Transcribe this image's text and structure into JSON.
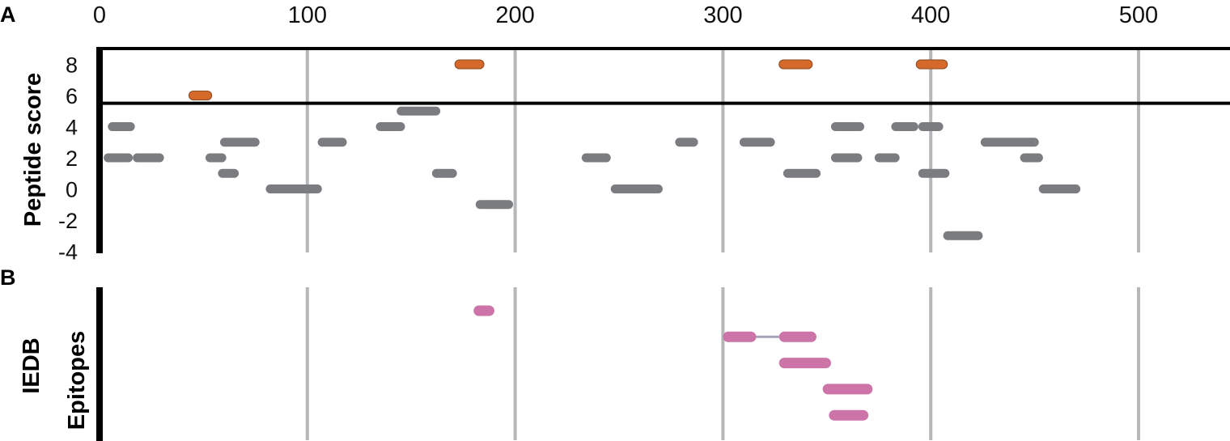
{
  "chart_data": [
    {
      "panel_label": "A",
      "type": "range-bar",
      "ylabel": "Peptide score",
      "xlim": [
        0,
        550
      ],
      "ylim": [
        -4,
        9
      ],
      "x_ticks": [
        "0",
        "100",
        "200",
        "300",
        "400",
        "500"
      ],
      "y_ticks": [
        "8",
        "6",
        "4",
        "2",
        "0",
        "-2",
        "-4"
      ],
      "threshold": 5.5,
      "colors": {
        "high": "#d4692a",
        "normal": "#7a7c80",
        "grid": "#b5b7b8"
      },
      "segments": [
        {
          "start": 43,
          "end": 54,
          "score": 6,
          "group": "high"
        },
        {
          "start": 171,
          "end": 185,
          "score": 8,
          "group": "high"
        },
        {
          "start": 327,
          "end": 343,
          "score": 8,
          "group": "high"
        },
        {
          "start": 393,
          "end": 408,
          "score": 8,
          "group": "high"
        },
        {
          "start": 4,
          "end": 17,
          "score": 4,
          "group": "normal"
        },
        {
          "start": 2,
          "end": 16,
          "score": 2,
          "group": "normal"
        },
        {
          "start": 16,
          "end": 31,
          "score": 2,
          "group": "normal"
        },
        {
          "start": 51,
          "end": 61,
          "score": 2,
          "group": "normal"
        },
        {
          "start": 57,
          "end": 67,
          "score": 1,
          "group": "normal"
        },
        {
          "start": 58,
          "end": 77,
          "score": 3,
          "group": "normal"
        },
        {
          "start": 80,
          "end": 107,
          "score": 0,
          "group": "normal"
        },
        {
          "start": 105,
          "end": 119,
          "score": 3,
          "group": "normal"
        },
        {
          "start": 133,
          "end": 147,
          "score": 4,
          "group": "normal"
        },
        {
          "start": 143,
          "end": 164,
          "score": 5,
          "group": "normal"
        },
        {
          "start": 160,
          "end": 172,
          "score": 1,
          "group": "normal"
        },
        {
          "start": 181,
          "end": 199,
          "score": -1,
          "group": "normal"
        },
        {
          "start": 232,
          "end": 246,
          "score": 2,
          "group": "normal"
        },
        {
          "start": 246,
          "end": 271,
          "score": 0,
          "group": "normal"
        },
        {
          "start": 277,
          "end": 288,
          "score": 3,
          "group": "normal"
        },
        {
          "start": 308,
          "end": 325,
          "score": 3,
          "group": "normal"
        },
        {
          "start": 329,
          "end": 347,
          "score": 1,
          "group": "normal"
        },
        {
          "start": 352,
          "end": 368,
          "score": 4,
          "group": "normal"
        },
        {
          "start": 352,
          "end": 367,
          "score": 2,
          "group": "normal"
        },
        {
          "start": 373,
          "end": 385,
          "score": 2,
          "group": "normal"
        },
        {
          "start": 381,
          "end": 394,
          "score": 4,
          "group": "normal"
        },
        {
          "start": 394,
          "end": 406,
          "score": 4,
          "group": "normal"
        },
        {
          "start": 394,
          "end": 409,
          "score": 1,
          "group": "normal"
        },
        {
          "start": 406,
          "end": 425,
          "score": -3,
          "group": "normal"
        },
        {
          "start": 424,
          "end": 452,
          "score": 3,
          "group": "normal"
        },
        {
          "start": 443,
          "end": 454,
          "score": 2,
          "group": "normal"
        },
        {
          "start": 452,
          "end": 472,
          "score": 0,
          "group": "normal"
        }
      ]
    },
    {
      "panel_label": "B",
      "type": "range-bar",
      "ylabel_lines": [
        "IEDB",
        "Epitopes"
      ],
      "xlim": [
        0,
        550
      ],
      "color": "#cc73a8",
      "connector_color": "#a8a0b8",
      "rows": 5,
      "segments": [
        {
          "start": 180,
          "end": 190,
          "row": 0
        },
        {
          "start": 300,
          "end": 316,
          "row": 1
        },
        {
          "start": 327,
          "end": 345,
          "row": 1
        },
        {
          "start": 327,
          "end": 352,
          "row": 2
        },
        {
          "start": 348,
          "end": 372,
          "row": 3
        },
        {
          "start": 351,
          "end": 370,
          "row": 4
        }
      ],
      "connectors": [
        {
          "start": 316,
          "end": 327,
          "row": 1
        }
      ]
    }
  ]
}
